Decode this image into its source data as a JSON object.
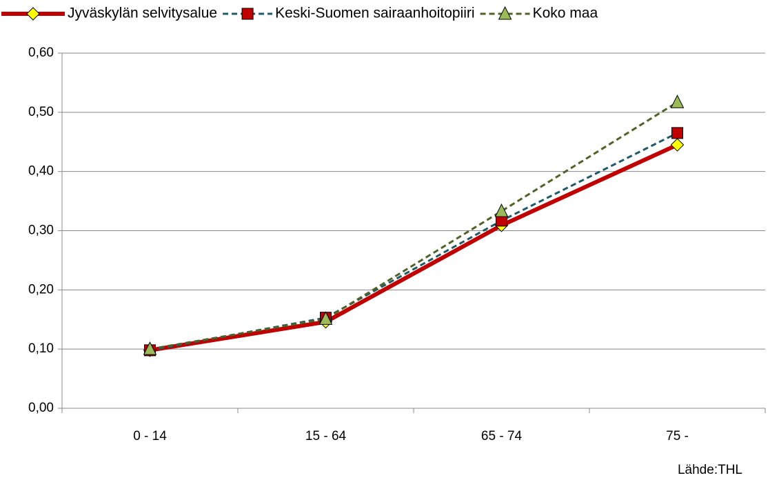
{
  "chart_data": {
    "type": "line",
    "categories": [
      "0 - 14",
      "15 - 64",
      "65 - 74",
      "75 -"
    ],
    "series": [
      {
        "name": "Jyväskylän selvitysalue",
        "color": "#c00000",
        "marker": "diamond",
        "marker_color": "#ffff00",
        "dashed": false,
        "values": [
          0.098,
          0.146,
          0.309,
          0.445
        ]
      },
      {
        "name": "Keski-Suomen sairaanhoitopiiri",
        "color": "#215968",
        "marker": "square",
        "marker_color": "#c00000",
        "dashed": true,
        "values": [
          0.098,
          0.153,
          0.317,
          0.465
        ]
      },
      {
        "name": "Koko maa",
        "color": "#4f6228",
        "marker": "triangle",
        "marker_color": "#9bbb59",
        "dashed": true,
        "values": [
          0.1,
          0.151,
          0.333,
          0.517
        ]
      }
    ],
    "ylim": [
      0,
      0.6
    ],
    "yticks": [
      {
        "value": 0,
        "label": "0,00"
      },
      {
        "value": 0.1,
        "label": "0,10"
      },
      {
        "value": 0.2,
        "label": "0,20"
      },
      {
        "value": 0.3,
        "label": "0,30"
      },
      {
        "value": 0.4,
        "label": "0,40"
      },
      {
        "value": 0.5,
        "label": "0,50"
      },
      {
        "value": 0.6,
        "label": "0,60"
      }
    ],
    "grid": true,
    "legend": "top",
    "source": "Lähde:THL"
  }
}
